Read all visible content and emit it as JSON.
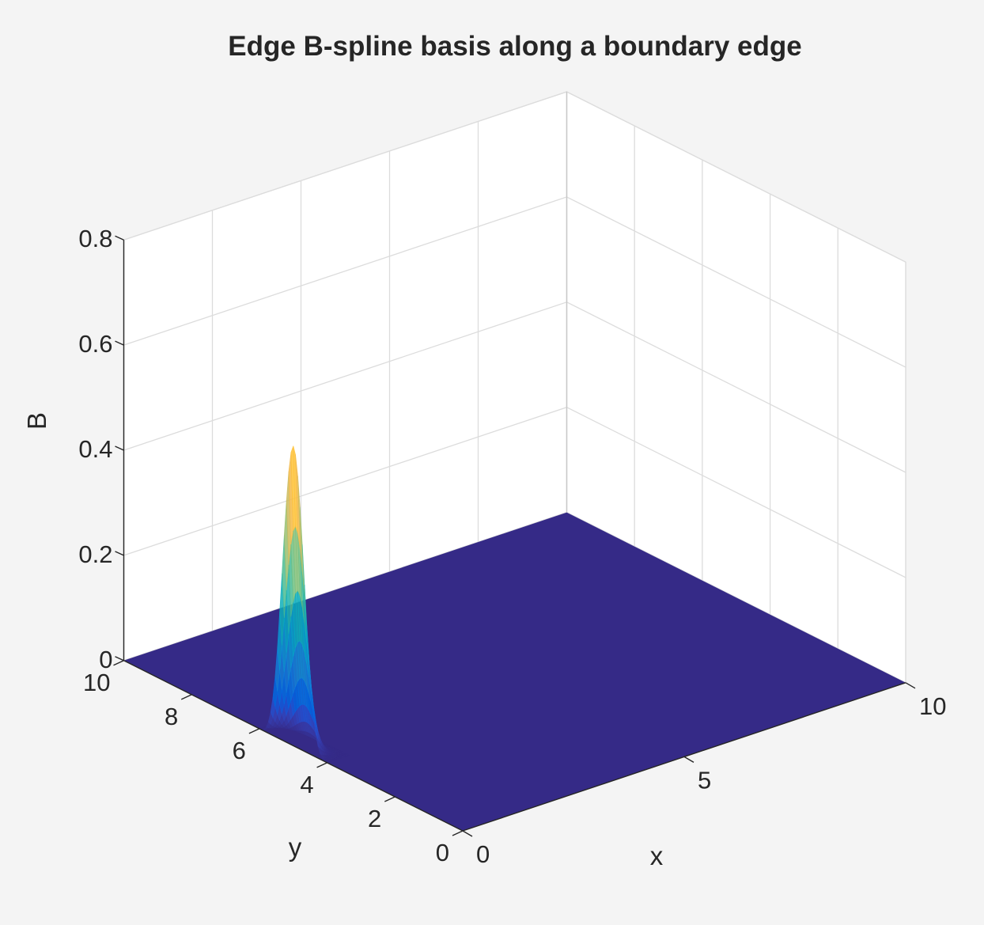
{
  "figure": {
    "background_color": "#f4f4f4",
    "axes_background_color": "#ffffff",
    "grid_color": "#dcdcdc",
    "axis_line_color": "#262626"
  },
  "chart_data": {
    "type": "surface",
    "title": "Edge B-spline basis along a boundary edge",
    "xlabel": "x",
    "ylabel": "y",
    "zlabel": "B",
    "xlim": [
      0,
      10
    ],
    "ylim": [
      0,
      10
    ],
    "zlim": [
      0,
      0.8
    ],
    "x_ticks": [
      0,
      5,
      10
    ],
    "x_tick_labels": [
      "0",
      "5",
      "10"
    ],
    "y_ticks": [
      0,
      2,
      4,
      6,
      8,
      10
    ],
    "y_tick_labels": [
      "0",
      "2",
      "4",
      "6",
      "8",
      "10"
    ],
    "z_ticks": [
      0,
      0.2,
      0.4,
      0.6,
      0.8
    ],
    "z_tick_labels": [
      "0",
      "0.2",
      "0.4",
      "0.6",
      "0.8"
    ],
    "grid": true,
    "colormap": "parula",
    "surface_alpha": 0.85,
    "surface": {
      "description_of_function": "edge basis B(x,y) = Bx(x) * By(y), supported on the boundary edge x = 0",
      "x_support": [
        0,
        0.5
      ],
      "x_peak": 0,
      "y_support": [
        4,
        6
      ],
      "y_peak": 5,
      "peak_value": 0.57,
      "elsewhere_value": 0
    },
    "view": {
      "azimuth_deg": -45,
      "elevation_deg": 25
    }
  }
}
